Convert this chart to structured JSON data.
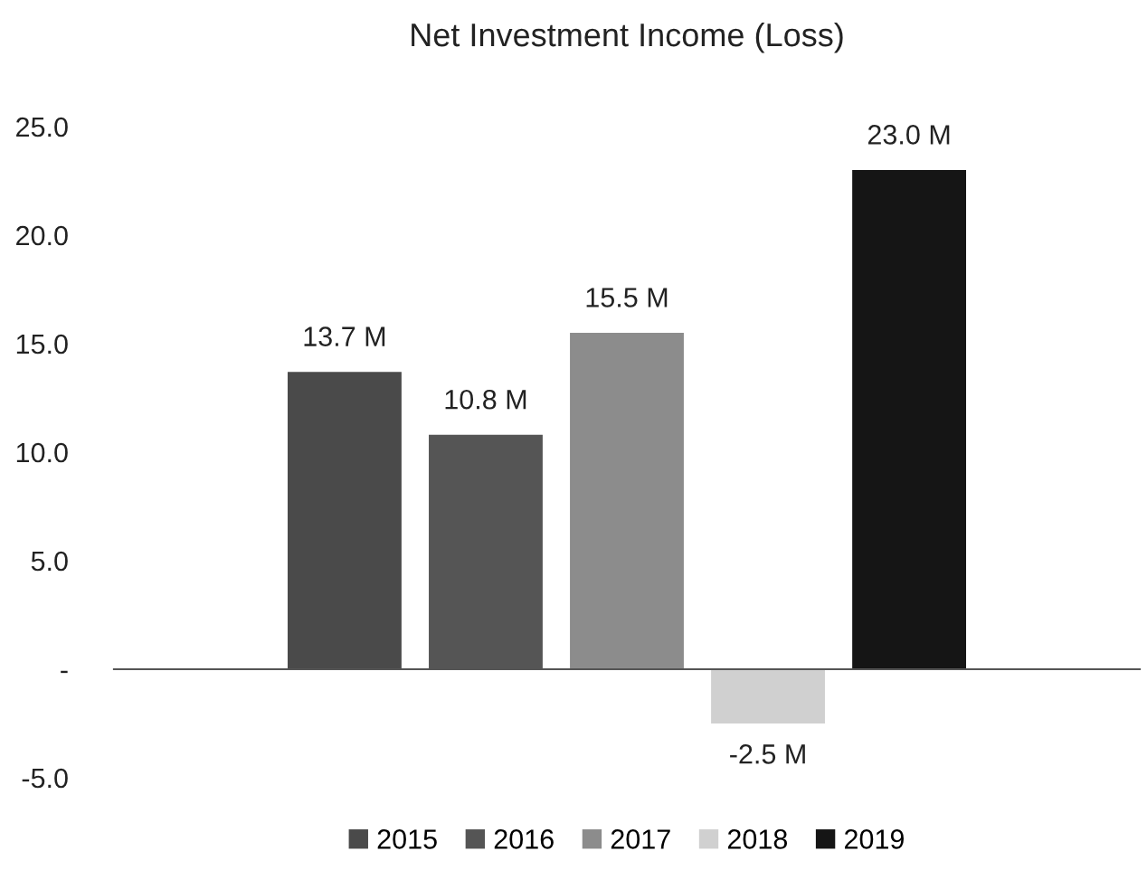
{
  "chart_data": {
    "type": "bar",
    "title": "Net Investment Income (Loss)",
    "categories": [
      null
    ],
    "series": [
      {
        "name": "2015",
        "color": "#4a4a4a",
        "values": [
          13.7
        ],
        "value_labels": [
          "13.7 M"
        ]
      },
      {
        "name": "2016",
        "color": "#555555",
        "values": [
          10.8
        ],
        "value_labels": [
          "10.8 M"
        ]
      },
      {
        "name": "2017",
        "color": "#8c8c8c",
        "values": [
          15.5
        ],
        "value_labels": [
          "15.5 M"
        ]
      },
      {
        "name": "2018",
        "color": "#d0d0d0",
        "values": [
          -2.5
        ],
        "value_labels": [
          "-2.5 M"
        ]
      },
      {
        "name": "2019",
        "color": "#151515",
        "values": [
          23.0
        ],
        "value_labels": [
          "23.0 M"
        ]
      }
    ],
    "ylim": [
      -5,
      25
    ],
    "yticks": [
      {
        "value": -5,
        "label": "-5.0"
      },
      {
        "value": 0,
        "label": "-"
      },
      {
        "value": 5,
        "label": "5.0"
      },
      {
        "value": 10,
        "label": "10.0"
      },
      {
        "value": 15,
        "label": "15.0"
      },
      {
        "value": 20,
        "label": "20.0"
      },
      {
        "value": 25,
        "label": "25.0"
      }
    ],
    "legend": "bottom"
  }
}
